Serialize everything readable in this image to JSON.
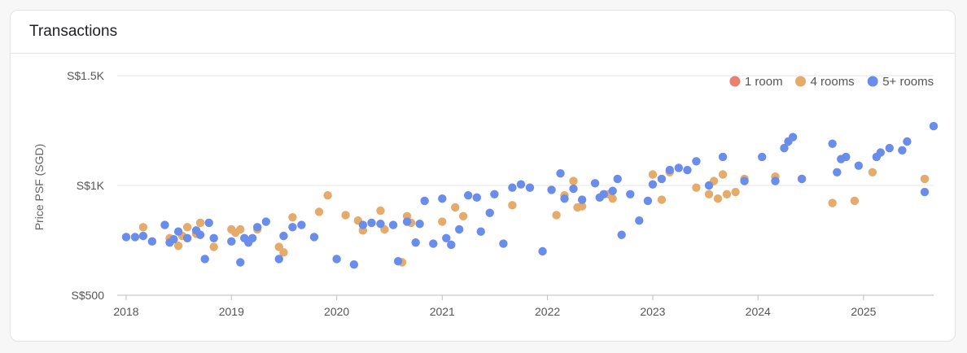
{
  "card": {
    "title": "Transactions"
  },
  "chart_data": {
    "type": "scatter",
    "title": "",
    "xlabel": "",
    "ylabel": "Price PSF (SGD)",
    "x_ticks": [
      "2018",
      "2019",
      "2020",
      "2021",
      "2022",
      "2023",
      "2024",
      "2025"
    ],
    "y_ticks": [
      "S$500",
      "S$1K",
      "S$1.5K"
    ],
    "xlim": [
      "2017-12-01",
      "2025-09-01"
    ],
    "ylim": [
      500,
      1500
    ],
    "grid": "horizontal",
    "legend_position": "top-right",
    "series": [
      {
        "name": "1 room",
        "color": "#e8806d",
        "points": []
      },
      {
        "name": "4 rooms",
        "color": "#e5ab6b",
        "points": [
          [
            "2018-03-01",
            810
          ],
          [
            "2018-06-01",
            760
          ],
          [
            "2018-07-01",
            725
          ],
          [
            "2018-07-15",
            770
          ],
          [
            "2018-08-01",
            810
          ],
          [
            "2018-09-01",
            780
          ],
          [
            "2018-09-15",
            830
          ],
          [
            "2018-11-01",
            720
          ],
          [
            "2019-01-01",
            800
          ],
          [
            "2019-01-15",
            785
          ],
          [
            "2019-02-01",
            800
          ],
          [
            "2019-04-01",
            800
          ],
          [
            "2019-06-15",
            720
          ],
          [
            "2019-07-01",
            695
          ],
          [
            "2019-08-01",
            855
          ],
          [
            "2019-11-01",
            880
          ],
          [
            "2019-12-01",
            955
          ],
          [
            "2020-02-01",
            865
          ],
          [
            "2020-03-15",
            840
          ],
          [
            "2020-04-01",
            795
          ],
          [
            "2020-06-01",
            885
          ],
          [
            "2020-06-15",
            800
          ],
          [
            "2020-08-15",
            650
          ],
          [
            "2020-09-01",
            860
          ],
          [
            "2020-09-15",
            830
          ],
          [
            "2021-01-01",
            835
          ],
          [
            "2021-02-15",
            900
          ],
          [
            "2021-03-15",
            860
          ],
          [
            "2021-09-01",
            910
          ],
          [
            "2022-02-01",
            865
          ],
          [
            "2022-03-01",
            955
          ],
          [
            "2022-04-01",
            1020
          ],
          [
            "2022-04-15",
            900
          ],
          [
            "2022-05-01",
            905
          ],
          [
            "2022-08-01",
            960
          ],
          [
            "2022-08-15",
            940
          ],
          [
            "2023-01-01",
            1050
          ],
          [
            "2023-02-01",
            935
          ],
          [
            "2023-03-01",
            1060
          ],
          [
            "2023-06-01",
            990
          ],
          [
            "2023-07-15",
            960
          ],
          [
            "2023-08-01",
            1020
          ],
          [
            "2023-08-15",
            940
          ],
          [
            "2023-09-01",
            1050
          ],
          [
            "2023-09-15",
            960
          ],
          [
            "2023-10-15",
            970
          ],
          [
            "2023-11-15",
            1030
          ],
          [
            "2024-03-01",
            1040
          ],
          [
            "2024-06-01",
            1030
          ],
          [
            "2024-09-15",
            920
          ],
          [
            "2024-12-01",
            930
          ],
          [
            "2025-02-01",
            1060
          ],
          [
            "2025-08-01",
            1030
          ]
        ]
      },
      {
        "name": "5+ rooms",
        "color": "#6a8ceb",
        "points": [
          [
            "2018-01-01",
            765
          ],
          [
            "2018-02-01",
            765
          ],
          [
            "2018-03-01",
            770
          ],
          [
            "2018-04-01",
            745
          ],
          [
            "2018-05-15",
            820
          ],
          [
            "2018-06-01",
            740
          ],
          [
            "2018-06-15",
            755
          ],
          [
            "2018-07-01",
            790
          ],
          [
            "2018-08-01",
            760
          ],
          [
            "2018-09-01",
            795
          ],
          [
            "2018-09-15",
            775
          ],
          [
            "2018-10-01",
            665
          ],
          [
            "2018-10-15",
            830
          ],
          [
            "2018-11-01",
            760
          ],
          [
            "2019-01-01",
            745
          ],
          [
            "2019-02-01",
            650
          ],
          [
            "2019-02-15",
            760
          ],
          [
            "2019-03-01",
            740
          ],
          [
            "2019-03-15",
            760
          ],
          [
            "2019-04-01",
            810
          ],
          [
            "2019-05-01",
            835
          ],
          [
            "2019-06-15",
            665
          ],
          [
            "2019-07-01",
            770
          ],
          [
            "2019-08-01",
            810
          ],
          [
            "2019-09-01",
            820
          ],
          [
            "2019-10-15",
            765
          ],
          [
            "2020-01-01",
            665
          ],
          [
            "2020-03-01",
            640
          ],
          [
            "2020-04-01",
            820
          ],
          [
            "2020-05-01",
            830
          ],
          [
            "2020-06-01",
            825
          ],
          [
            "2020-07-15",
            820
          ],
          [
            "2020-08-01",
            655
          ],
          [
            "2020-09-01",
            835
          ],
          [
            "2020-10-01",
            740
          ],
          [
            "2020-10-15",
            825
          ],
          [
            "2020-11-01",
            930
          ],
          [
            "2020-12-01",
            735
          ],
          [
            "2021-01-01",
            940
          ],
          [
            "2021-01-15",
            760
          ],
          [
            "2021-02-01",
            730
          ],
          [
            "2021-03-01",
            800
          ],
          [
            "2021-04-01",
            955
          ],
          [
            "2021-05-01",
            945
          ],
          [
            "2021-05-15",
            790
          ],
          [
            "2021-06-15",
            875
          ],
          [
            "2021-07-01",
            960
          ],
          [
            "2021-08-01",
            735
          ],
          [
            "2021-09-01",
            990
          ],
          [
            "2021-10-01",
            1005
          ],
          [
            "2021-11-01",
            990
          ],
          [
            "2021-12-15",
            700
          ],
          [
            "2022-01-15",
            980
          ],
          [
            "2022-02-15",
            1055
          ],
          [
            "2022-03-01",
            940
          ],
          [
            "2022-04-01",
            985
          ],
          [
            "2022-05-01",
            935
          ],
          [
            "2022-06-15",
            1010
          ],
          [
            "2022-07-01",
            945
          ],
          [
            "2022-07-15",
            960
          ],
          [
            "2022-08-15",
            975
          ],
          [
            "2022-09-01",
            1030
          ],
          [
            "2022-09-15",
            775
          ],
          [
            "2022-10-15",
            960
          ],
          [
            "2022-11-15",
            840
          ],
          [
            "2022-12-15",
            930
          ],
          [
            "2023-01-01",
            1005
          ],
          [
            "2023-02-01",
            1030
          ],
          [
            "2023-03-01",
            1070
          ],
          [
            "2023-04-01",
            1080
          ],
          [
            "2023-05-01",
            1070
          ],
          [
            "2023-06-01",
            1110
          ],
          [
            "2023-07-15",
            1000
          ],
          [
            "2023-09-01",
            1130
          ],
          [
            "2023-11-15",
            1020
          ],
          [
            "2024-01-15",
            1130
          ],
          [
            "2024-03-01",
            1020
          ],
          [
            "2024-04-01",
            1170
          ],
          [
            "2024-04-15",
            1200
          ],
          [
            "2024-05-01",
            1220
          ],
          [
            "2024-06-01",
            1030
          ],
          [
            "2024-09-15",
            1190
          ],
          [
            "2024-10-01",
            1060
          ],
          [
            "2024-10-15",
            1120
          ],
          [
            "2024-11-01",
            1130
          ],
          [
            "2024-12-15",
            1090
          ],
          [
            "2025-02-15",
            1130
          ],
          [
            "2025-03-01",
            1150
          ],
          [
            "2025-04-01",
            1170
          ],
          [
            "2025-05-15",
            1160
          ],
          [
            "2025-06-01",
            1200
          ],
          [
            "2025-08-01",
            970
          ],
          [
            "2025-09-01",
            1270
          ]
        ]
      }
    ]
  }
}
